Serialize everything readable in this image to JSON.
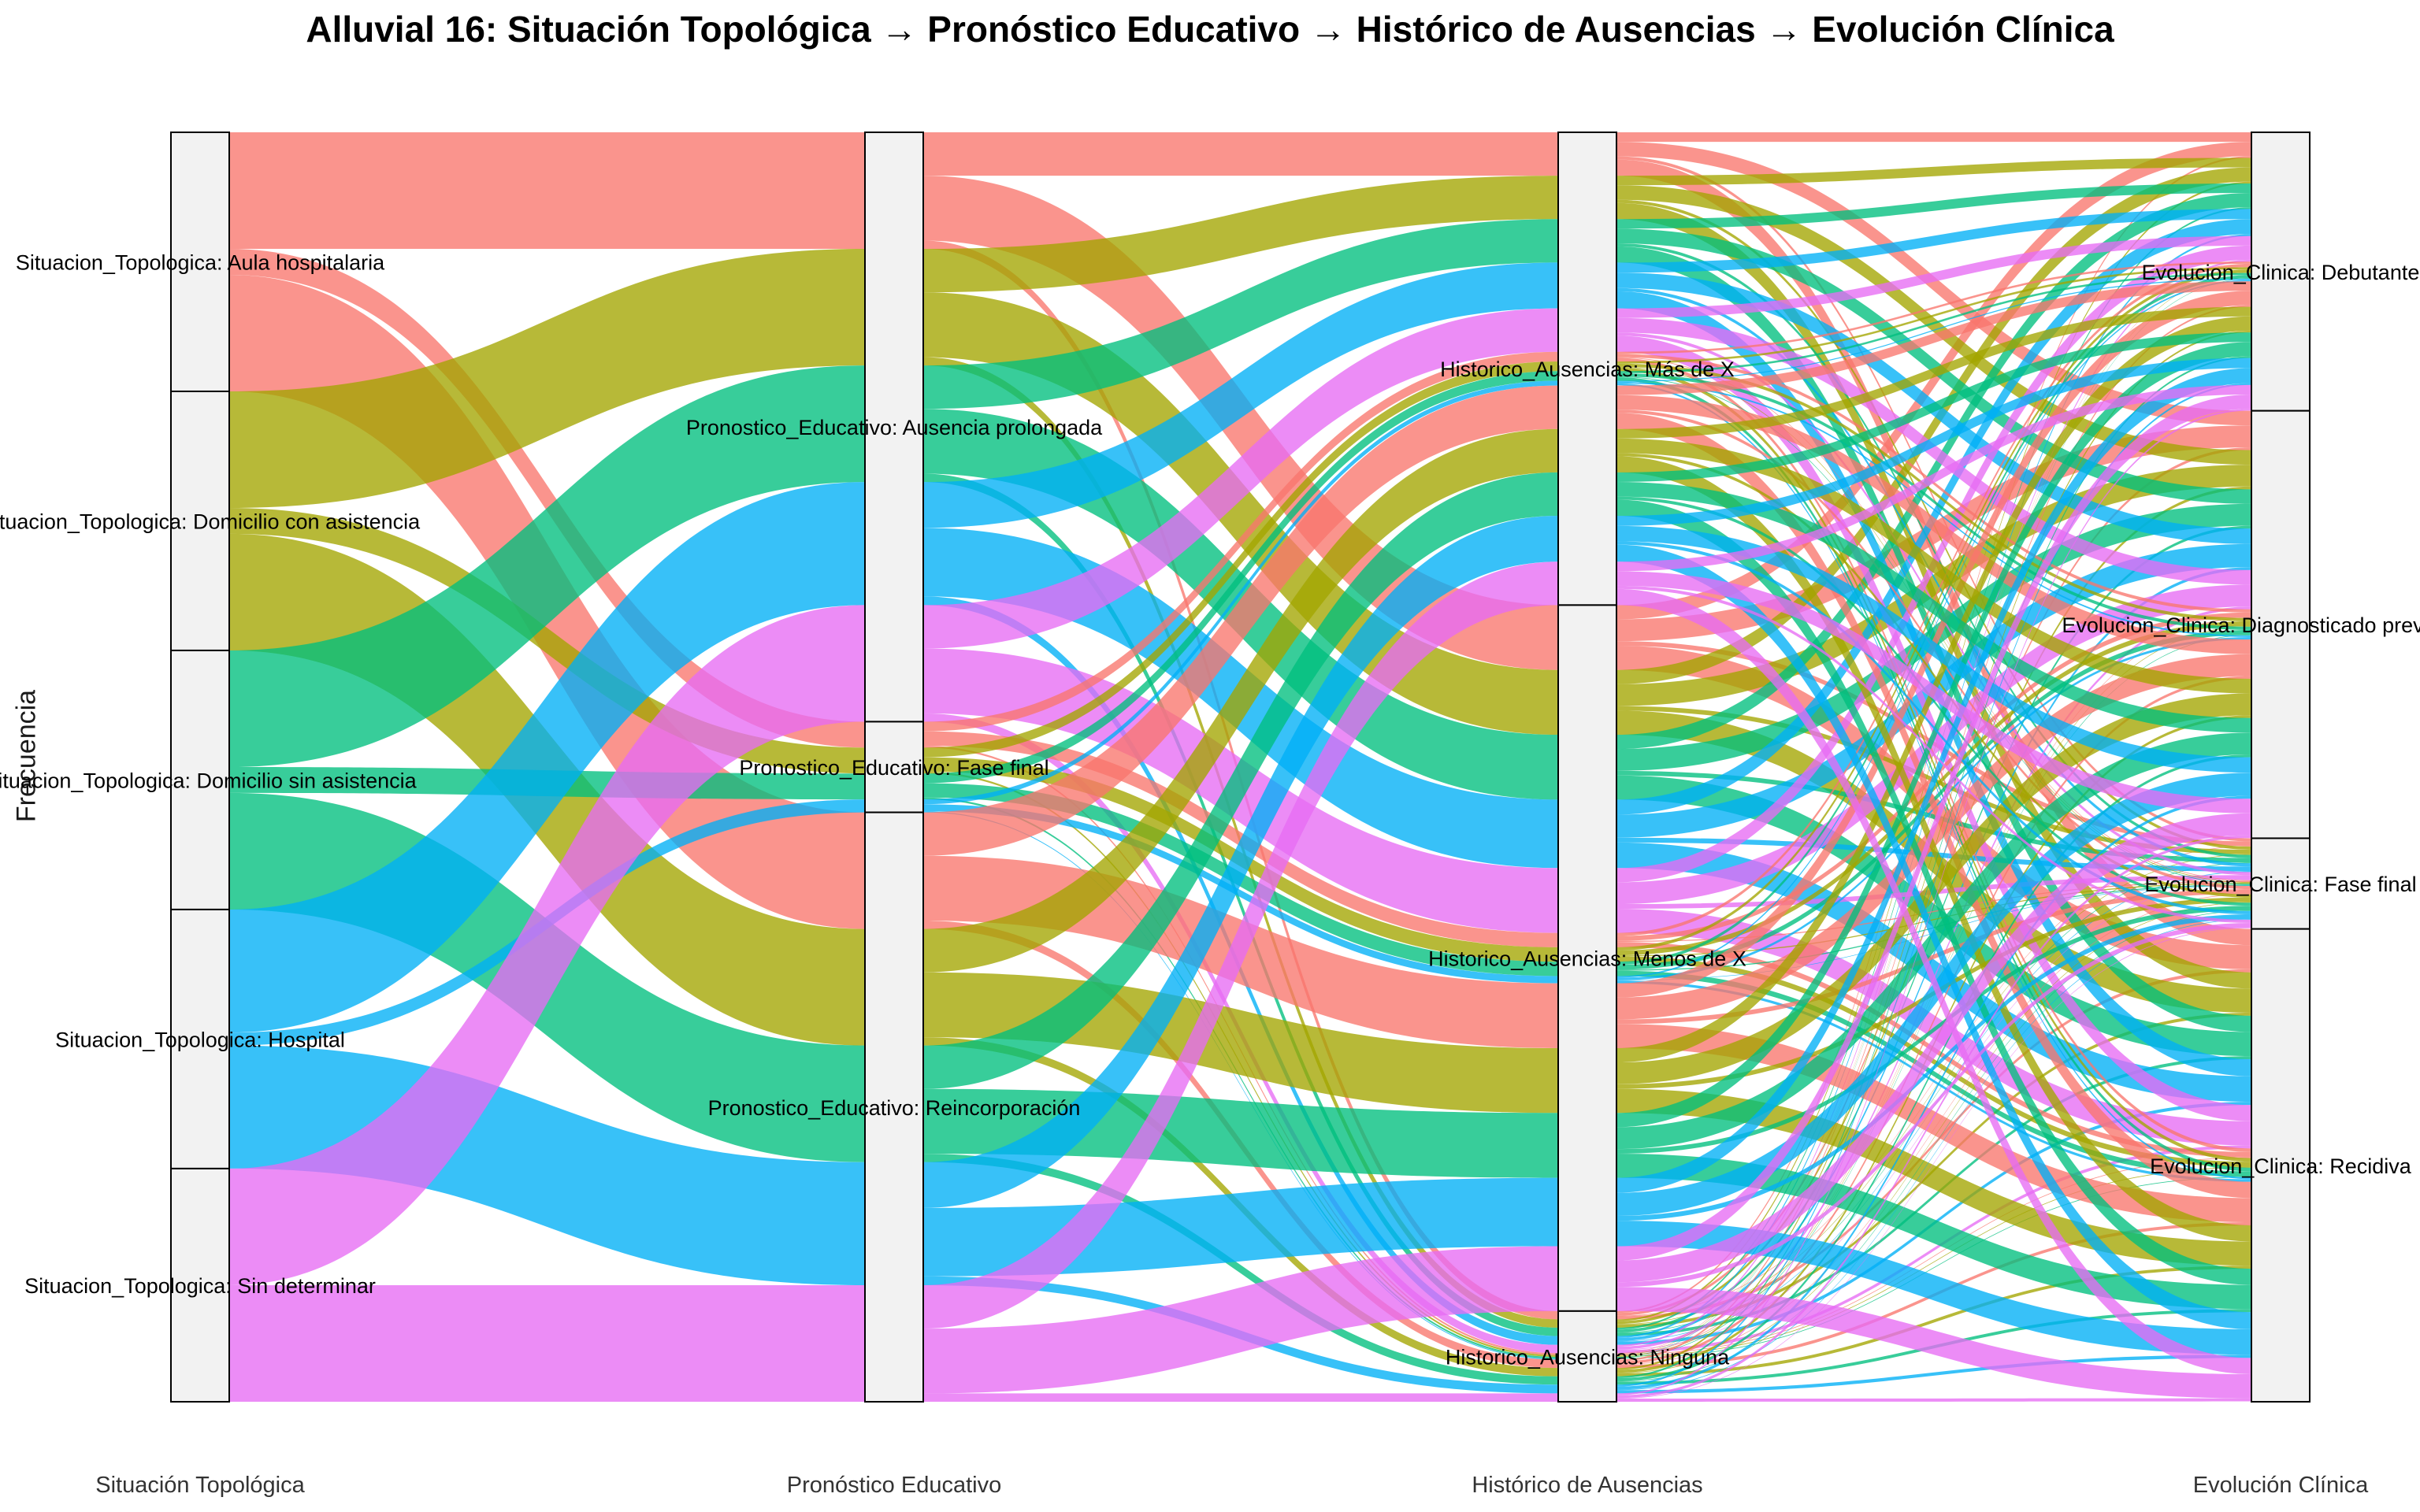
{
  "chart_data": {
    "type": "alluvial",
    "title": "Alluvial 16: Situación Topológica → Pronóstico Educativo → Histórico de Ausencias → Evolución Clínica",
    "ylabel": "Frecuencia",
    "axes": [
      {
        "label": "Situación Topológica",
        "strata": [
          {
            "name": "Aula hospitalaria",
            "label": "Situacion_Topologica: Aula hospitalaria",
            "value": 40
          },
          {
            "name": "Domicilio con asistencia",
            "label": "Situacion_Topologica: Domicilio con asistencia",
            "value": 40
          },
          {
            "name": "Domicilio sin asistencia",
            "label": "Situacion_Topologica: Domicilio sin asistencia",
            "value": 40
          },
          {
            "name": "Hospital",
            "label": "Situacion_Topologica: Hospital",
            "value": 40
          },
          {
            "name": "Sin determinar",
            "label": "Situacion_Topologica: Sin determinar",
            "value": 36
          }
        ]
      },
      {
        "label": "Pronóstico Educativo",
        "strata": [
          {
            "name": "Ausencia prolongada",
            "label": "Pronostico_Educativo: Ausencia prolongada",
            "value": 91
          },
          {
            "name": "Fase final",
            "label": "Pronostico_Educativo: Fase final",
            "value": 14
          },
          {
            "name": "Reincorporación",
            "label": "Pronostico_Educativo: Reincorporación",
            "value": 91
          }
        ]
      },
      {
        "label": "Histórico de Ausencias",
        "strata": [
          {
            "name": "Más de X",
            "label": "Historico_Ausencias: Más de X",
            "value": 73
          },
          {
            "name": "Menos de X",
            "label": "Historico_Ausencias: Menos de X",
            "value": 109
          },
          {
            "name": "Ninguna",
            "label": "Historico_Ausencias: Ninguna",
            "value": 14
          }
        ]
      },
      {
        "label": "Evolución Clínica",
        "strata": [
          {
            "name": "Debutante",
            "label": "Evolucion_Clinica: Debutante",
            "value": 43
          },
          {
            "name": "Diagnosticado previamente",
            "label": "Evolucion_Clinica: Diagnosticado previamente",
            "value": 66
          },
          {
            "name": "Fase final",
            "label": "Evolucion_Clinica: Fase final",
            "value": 14
          },
          {
            "name": "Recidiva",
            "label": "Evolucion_Clinica: Recidiva",
            "value": 73
          }
        ]
      }
    ],
    "flows_by_fill_category": [
      {
        "name": "Aula hospitalaria",
        "color": "#F8766D",
        "segments": [
          {
            "from": "Aula hospitalaria",
            "to": "Ausencia prolongada",
            "value": 18
          },
          {
            "from": "Aula hospitalaria",
            "to": "Fase final",
            "value": 4
          },
          {
            "from": "Aula hospitalaria",
            "to": "Reincorporación",
            "value": 18
          }
        ]
      },
      {
        "name": "Domicilio con asistencia",
        "color": "#A3A500",
        "segments": [
          {
            "from": "Domicilio con asistencia",
            "to": "Ausencia prolongada",
            "value": 18
          },
          {
            "from": "Domicilio con asistencia",
            "to": "Fase final",
            "value": 4
          },
          {
            "from": "Domicilio con asistencia",
            "to": "Reincorporación",
            "value": 18
          }
        ]
      },
      {
        "name": "Domicilio sin asistencia",
        "color": "#00BF7D",
        "segments": [
          {
            "from": "Domicilio sin asistencia",
            "to": "Ausencia prolongada",
            "value": 18
          },
          {
            "from": "Domicilio sin asistencia",
            "to": "Fase final",
            "value": 4
          },
          {
            "from": "Domicilio sin asistencia",
            "to": "Reincorporación",
            "value": 18
          }
        ]
      },
      {
        "name": "Hospital",
        "color": "#00B0F6",
        "segments": [
          {
            "from": "Hospital",
            "to": "Ausencia prolongada",
            "value": 19
          },
          {
            "from": "Hospital",
            "to": "Fase final",
            "value": 2
          },
          {
            "from": "Hospital",
            "to": "Reincorporación",
            "value": 19
          }
        ]
      },
      {
        "name": "Sin determinar",
        "color": "#E76BF3",
        "segments": [
          {
            "from": "Sin determinar",
            "to": "Ausencia prolongada",
            "value": 18
          },
          {
            "from": "Sin determinar",
            "to": "Reincorporación",
            "value": 18
          }
        ]
      }
    ],
    "legend": "none",
    "grid": false
  }
}
